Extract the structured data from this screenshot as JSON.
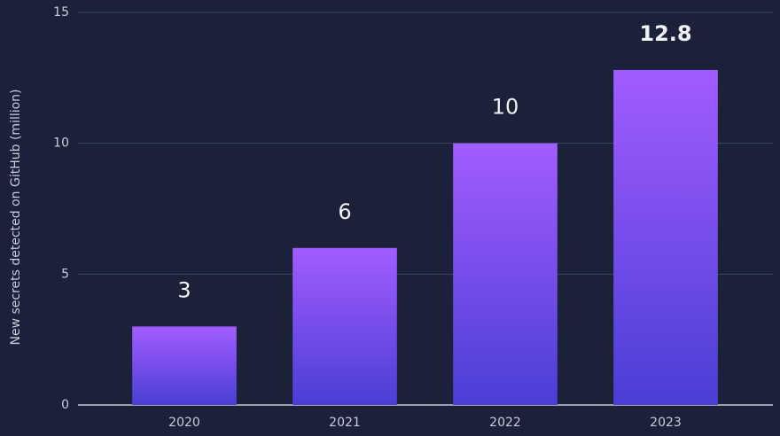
{
  "chart_data": {
    "type": "bar",
    "y_axis_label": "New secrets detected on GitHub (million)",
    "categories": [
      "2020",
      "2021",
      "2022",
      "2023"
    ],
    "values": [
      3,
      6,
      10,
      12.8
    ],
    "gradient": [
      "#a25cff",
      "#4a3ed6"
    ],
    "ylim": [
      0,
      15
    ],
    "yticks": [
      0,
      5,
      10,
      15
    ],
    "grid": true
  }
}
